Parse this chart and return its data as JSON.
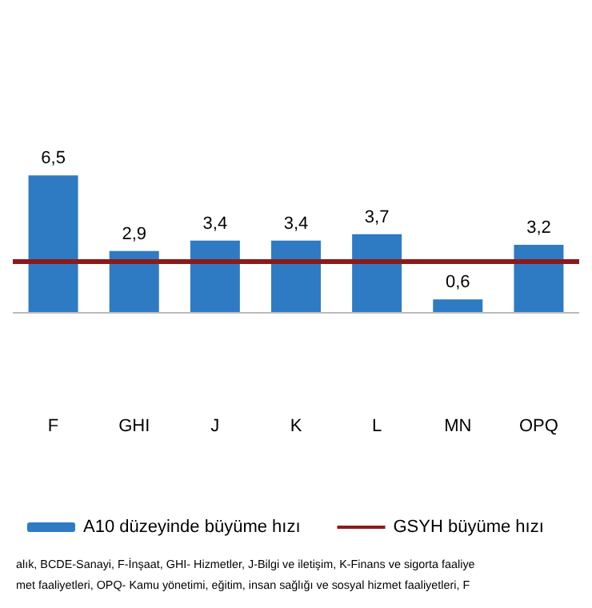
{
  "chart_data": {
    "type": "bar",
    "categories": [
      "F",
      "GHI",
      "J",
      "K",
      "L",
      "MN",
      "OPQ"
    ],
    "series": [
      {
        "name": "A10 düzeyinde büyüme hızı",
        "color": "#2e7bc4",
        "values": [
          6.5,
          2.9,
          3.4,
          3.4,
          3.7,
          0.6,
          3.2
        ],
        "value_labels": [
          "6,5",
          "2,9",
          "3,4",
          "3,4",
          "3,7",
          "0,6",
          "3,2"
        ]
      }
    ],
    "ref_lines": [
      {
        "axis": "y",
        "value": 2.4,
        "label": "GSYH büyüme hızı",
        "color": "#8b1a1a"
      }
    ],
    "legend": "bottom",
    "annotations": [
      "alık, BCDE-Sanayi, F-İnşaat, GHI- Hizmetler, J-Bilgi ve iletişim, K-Finans ve sigorta faaliye",
      "met faaliyetleri, OPQ- Kamu yönetimi, eğitim, insan sağlığı ve sosyal hizmet faaliyetleri, F"
    ]
  }
}
